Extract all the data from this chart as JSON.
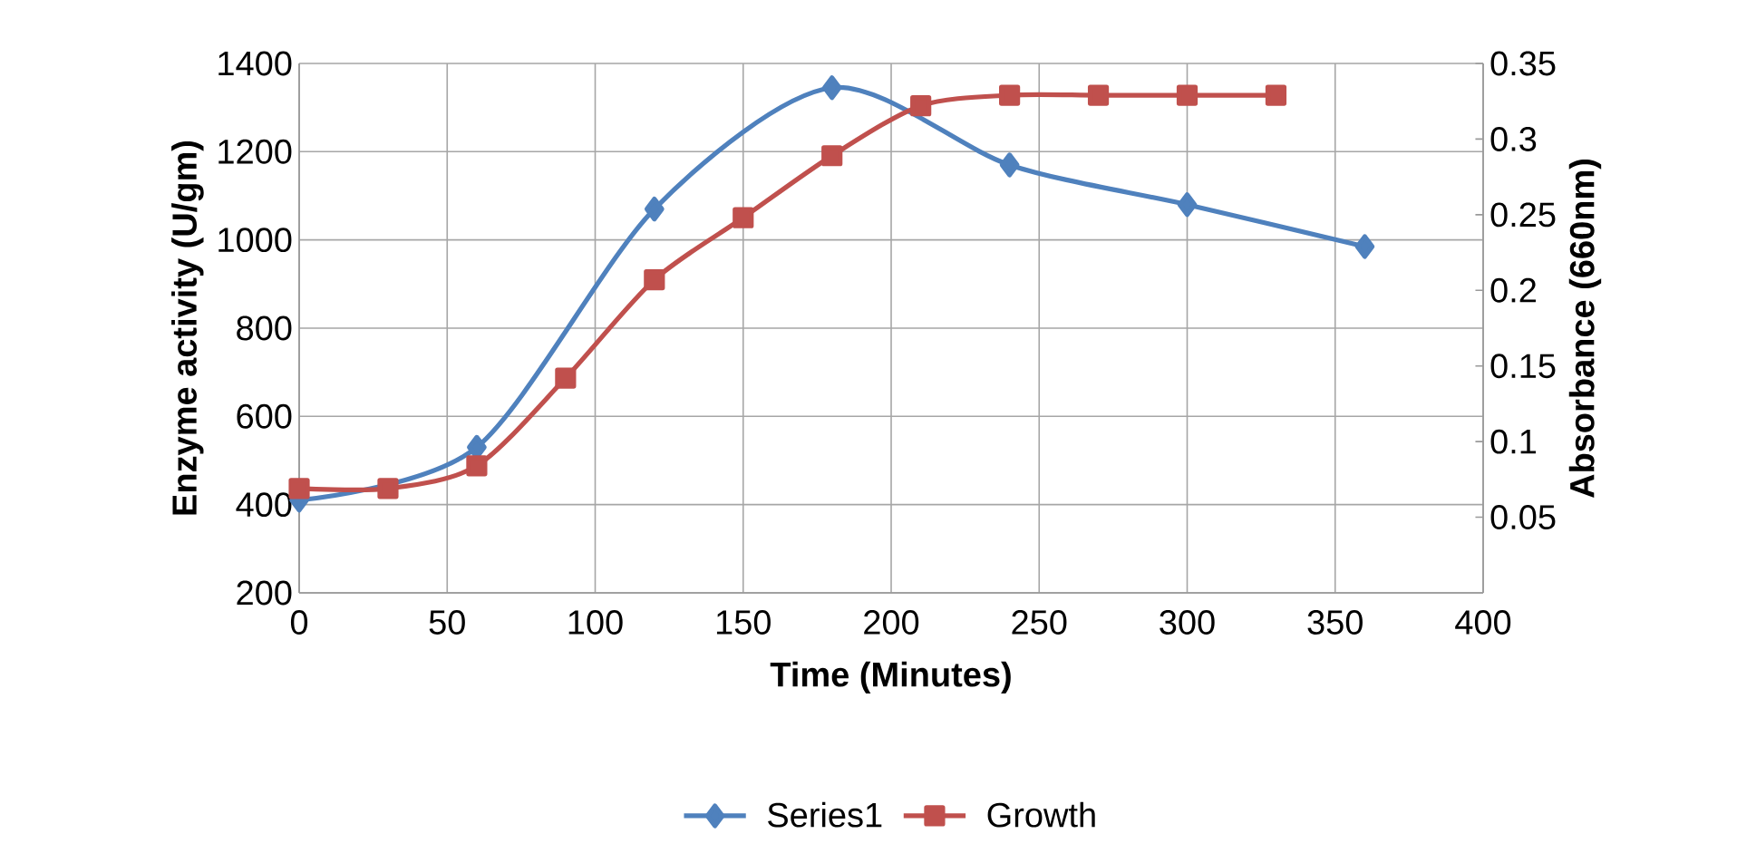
{
  "chart_data": {
    "type": "line",
    "xlabel": "Time (Minutes)",
    "ylabel": "Enzyme activity (U/gm)",
    "y2label": "Absorbance (660nm)",
    "xlim": [
      0,
      400
    ],
    "xticks": [
      0,
      50,
      100,
      150,
      200,
      250,
      300,
      350,
      400
    ],
    "ylim": [
      200,
      1400
    ],
    "yticks": [
      200,
      400,
      600,
      800,
      1000,
      1200,
      1400
    ],
    "y2lim": [
      0,
      0.35
    ],
    "y2ticks": [
      0.05,
      0.1,
      0.15,
      0.2,
      0.25,
      0.3,
      0.35
    ],
    "grid": true,
    "legend": "bottom",
    "series": [
      {
        "name": "Series1",
        "color": "#4f81bd",
        "marker": "diamond",
        "x": [
          0,
          60,
          120,
          180,
          240,
          300,
          360
        ],
        "values": [
          410,
          530,
          1070,
          1345,
          1170,
          1080,
          985
        ]
      },
      {
        "name": "Growth",
        "color": "#c0504d",
        "marker": "square",
        "axis": "y2",
        "x": [
          0,
          30,
          60,
          90,
          120,
          150,
          180,
          210,
          240,
          270,
          300,
          330
        ],
        "values": [
          0.069,
          0.069,
          0.084,
          0.142,
          0.207,
          0.248,
          0.289,
          0.322,
          0.329,
          0.329,
          0.329,
          0.329
        ]
      }
    ]
  }
}
